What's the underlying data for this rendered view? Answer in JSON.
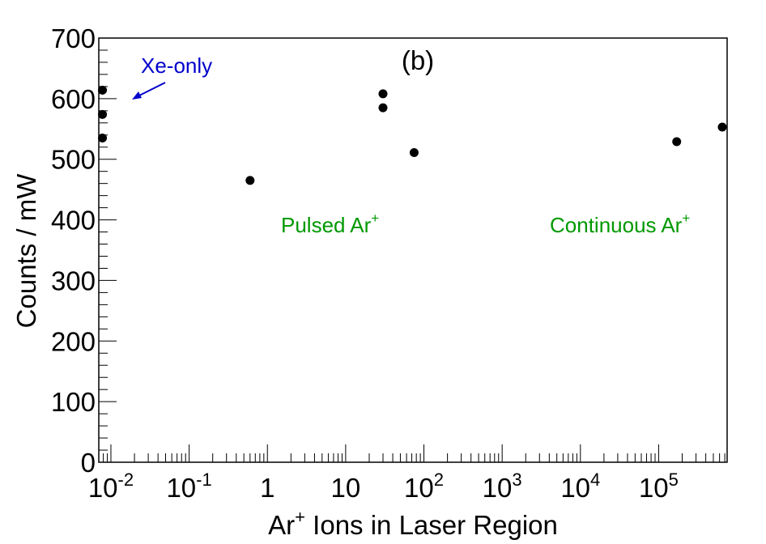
{
  "chart_data": {
    "type": "scatter",
    "title": "",
    "xlabel": "Ar⁺ Ions in Laser Region",
    "ylabel": "Counts / mW",
    "x_scale": "log",
    "xlim": [
      0.007,
      750000
    ],
    "ylim": [
      0,
      700
    ],
    "x_tick_labels": [
      {
        "value": 0.01,
        "base": "10",
        "exp": "-2"
      },
      {
        "value": 0.1,
        "base": "10",
        "exp": "-1"
      },
      {
        "value": 1,
        "base": "1",
        "exp": ""
      },
      {
        "value": 10,
        "base": "10",
        "exp": ""
      },
      {
        "value": 100,
        "base": "10",
        "exp": "2"
      },
      {
        "value": 1000,
        "base": "10",
        "exp": "3"
      },
      {
        "value": 10000,
        "base": "10",
        "exp": "4"
      },
      {
        "value": 100000,
        "base": "10",
        "exp": "5"
      }
    ],
    "y_ticks": [
      0,
      100,
      200,
      300,
      400,
      500,
      600,
      700
    ],
    "grid": false,
    "legend": "none",
    "marker_color": "#000000",
    "points": [
      {
        "x": 0.0078,
        "y": 614
      },
      {
        "x": 0.0078,
        "y": 574
      },
      {
        "x": 0.0078,
        "y": 535
      },
      {
        "x": 0.6,
        "y": 465
      },
      {
        "x": 30,
        "y": 608
      },
      {
        "x": 30,
        "y": 585
      },
      {
        "x": 75,
        "y": 511
      },
      {
        "x": 170000,
        "y": 529
      },
      {
        "x": 650000,
        "y": 553
      }
    ],
    "annotations": [
      {
        "text": "(b)",
        "color": "#000000"
      },
      {
        "text": "Xe-only",
        "color": "#0000cc"
      },
      {
        "text": "Pulsed Ar",
        "sup": "+",
        "color": "#009900"
      },
      {
        "text": "Continuous Ar",
        "sup": "+",
        "color": "#009900"
      }
    ]
  }
}
